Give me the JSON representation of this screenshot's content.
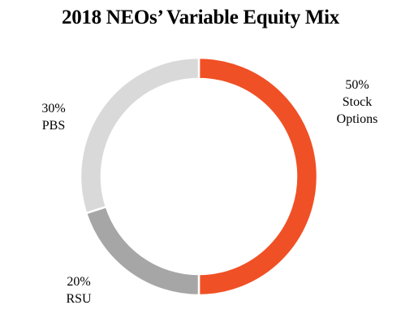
{
  "chart_data": {
    "type": "pie",
    "title": "2018 NEOs’ Variable Equity Mix",
    "donut": true,
    "legend": "none",
    "slices": [
      {
        "name": "Stock Options",
        "value": 50,
        "label_lines": [
          "50%",
          "Stock",
          "Options"
        ],
        "color": "#f05025"
      },
      {
        "name": "RSU",
        "value": 20,
        "label_lines": [
          "20%",
          "RSU"
        ],
        "color": "#a6a6a6"
      },
      {
        "name": "PBS",
        "value": 30,
        "label_lines": [
          "30%",
          "PBS"
        ],
        "color": "#d9d9d9"
      }
    ]
  }
}
